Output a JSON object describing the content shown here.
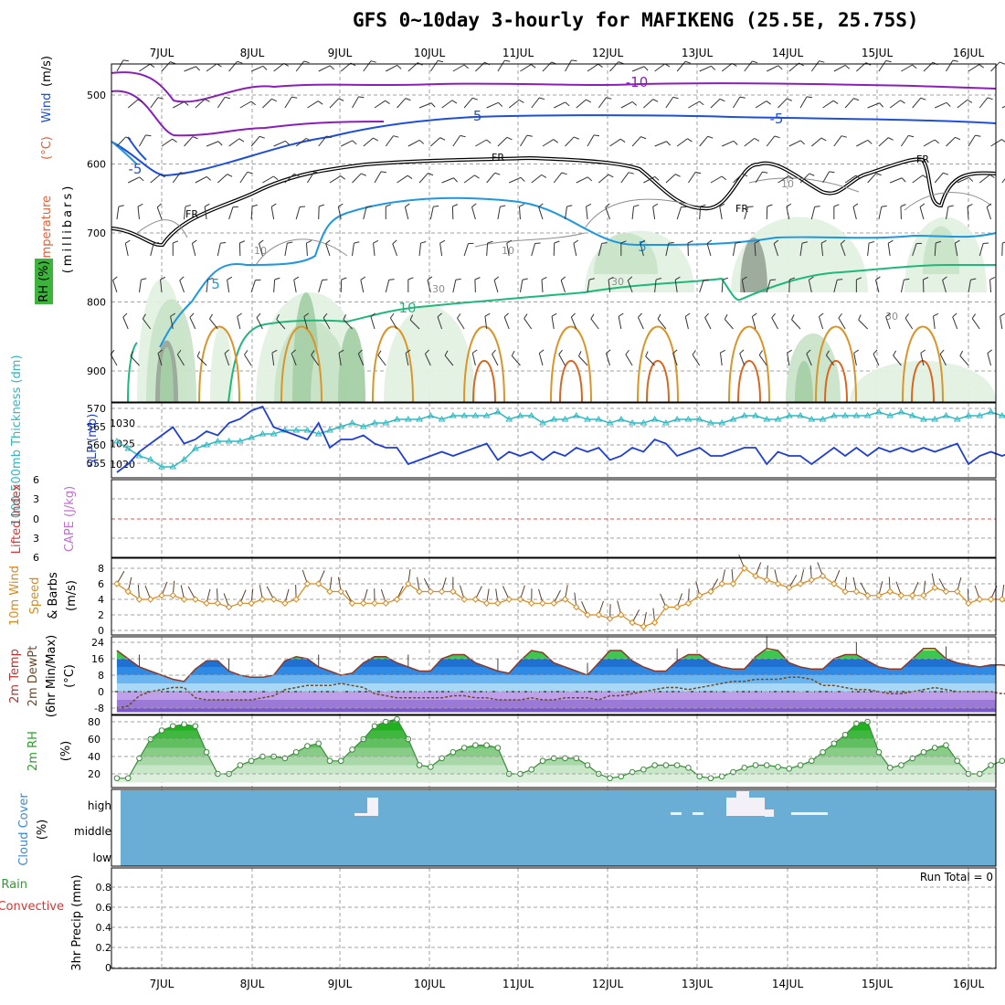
{
  "title": "GFS 0~10day 3-hourly for MAFIKENG (25.5E, 25.75S)",
  "dates": [
    "7JUL",
    "8JUL",
    "9JUL",
    "10JUL",
    "11JUL",
    "12JUL",
    "13JUL",
    "14JUL",
    "15JUL",
    "16JUL"
  ],
  "run_total": "Run Total = 0",
  "colors": {
    "frame": "#000000",
    "grid": "#a0a0a0",
    "temp_m10": "#8a1fb8",
    "temp_m5": "#1f4fd6",
    "temp_p5": "#1f97e0",
    "temp_p10": "#1fb87a",
    "temp_warm": "#d9952a",
    "fr": "#000000",
    "slp": "#1f3fd0",
    "thickness": "#2fb8c0",
    "wind10": "#d98a1f",
    "cloud": "#6aaed6"
  },
  "chart_data": [
    {
      "id": "upper-air",
      "type": "contour",
      "ylabel": "(millibars)",
      "ylabel_left": [
        "Temperature",
        "(°C)",
        "Wind",
        "(m/s)"
      ],
      "rh_label": "RH (%)",
      "y_ticks": [
        "500",
        "600",
        "700",
        "800",
        "900"
      ],
      "contour_labels": [
        "-10",
        "-5",
        "-5",
        "-5",
        "FR",
        "FR",
        "FR",
        "FR",
        "5",
        "5",
        "10",
        "10",
        "10",
        "10",
        "30",
        "30",
        "30"
      ]
    },
    {
      "id": "slp-thickness",
      "type": "line",
      "ylabel_left": "1000-500mb Thickness (dm)",
      "ylabel_right": "SLP (mb)",
      "left_ticks": [
        "570",
        "565",
        "560",
        "555"
      ],
      "right_ticks": [
        "1030",
        "1025",
        "1020"
      ],
      "series": [
        {
          "name": "SLP",
          "values": [
            1018,
            1020,
            1023,
            1025,
            1027,
            1029,
            1025,
            1026,
            1028,
            1027,
            1030,
            1031,
            1033,
            1034,
            1029,
            1028,
            1027,
            1026,
            1030,
            1024,
            1026,
            1026,
            1027,
            1025,
            1024,
            1024,
            1020,
            1021,
            1022,
            1023,
            1022,
            1023,
            1024,
            1025,
            1021,
            1023,
            1022,
            1023,
            1021,
            1023,
            1022,
            1024,
            1023,
            1024,
            1021,
            1022,
            1024,
            1023,
            1026,
            1025,
            1022,
            1023,
            1024,
            1022,
            1022,
            1023,
            1024,
            1024,
            1020,
            1023,
            1022,
            1022,
            1020,
            1022,
            1024,
            1022,
            1024,
            1022,
            1024,
            1023,
            1024,
            1023,
            1024,
            1023,
            1024,
            1025,
            1020,
            1022,
            1023,
            1022,
            1023,
            1024
          ]
        },
        {
          "name": "Thickness",
          "values": [
            561,
            559,
            557,
            556,
            554,
            554,
            556,
            559,
            560,
            561,
            561,
            561,
            562,
            563,
            563,
            564,
            564,
            564,
            563,
            564,
            565,
            566,
            565,
            566,
            566,
            567,
            567,
            567,
            568,
            567,
            568,
            568,
            568,
            568,
            569,
            567,
            568,
            568,
            566,
            567,
            567,
            568,
            567,
            567,
            566,
            567,
            566,
            566,
            567,
            566,
            567,
            567,
            567,
            566,
            566,
            567,
            568,
            568,
            567,
            567,
            568,
            568,
            567,
            567,
            568,
            568,
            568,
            568,
            569,
            568,
            569,
            568,
            567,
            567,
            568,
            567,
            568,
            568,
            569,
            568,
            568,
            568
          ]
        }
      ]
    },
    {
      "id": "cape-li",
      "type": "line",
      "ylabel_left": "Lifted Index",
      "ylabel_right": "CAPE (J/kg)",
      "y_ticks": [
        "6",
        "3",
        "0",
        "3",
        "6"
      ]
    },
    {
      "id": "wind10m",
      "type": "line",
      "ylabel_left": "10m Wind",
      "ylabel_mid": "Speed",
      "ylabel_right": "& Barbs",
      "unit": "(m/s)",
      "y_ticks": [
        "8",
        "6",
        "4",
        "2",
        "0"
      ],
      "ylim": [
        0,
        9
      ],
      "series": [
        {
          "name": "10m Wind Speed",
          "values": [
            6,
            5,
            4,
            4,
            4.5,
            4.5,
            4,
            4,
            3.5,
            3.5,
            3,
            3.5,
            3.5,
            4,
            4,
            3.5,
            4,
            6,
            6,
            5,
            5,
            3.5,
            3.5,
            3.5,
            3.5,
            4,
            6,
            5,
            5,
            5,
            5,
            4,
            4,
            3.5,
            3.5,
            4,
            4,
            3.5,
            3.5,
            3.5,
            4,
            3,
            2,
            2,
            1.5,
            2,
            1,
            0.5,
            1,
            3,
            3,
            3.5,
            4.5,
            5,
            6,
            6,
            8,
            7,
            6.5,
            6,
            5.5,
            6,
            6.5,
            7,
            6,
            5,
            5,
            4.5,
            4.5,
            5,
            4.5,
            4.5,
            4.5,
            5.5,
            5,
            5,
            3.5,
            4,
            4,
            4,
            3,
            5
          ]
        }
      ]
    },
    {
      "id": "temperature-2m",
      "type": "area",
      "ylabel_left": "2m Temp",
      "ylabel_mid": "2m DewPt",
      "ylabel_right": "(6hr Min/Max)",
      "unit": "(°C)",
      "y_ticks": [
        "24",
        "16",
        "8",
        "0",
        "-8"
      ],
      "ylim": [
        -10,
        26
      ],
      "series": [
        {
          "name": "2m Temp",
          "values": [
            20,
            16,
            12,
            10,
            8,
            6,
            5,
            11,
            15,
            15,
            10,
            8,
            7,
            7,
            8,
            15,
            17,
            16,
            12,
            10,
            8,
            9,
            14,
            17,
            17,
            14,
            12,
            10,
            10,
            16,
            18,
            18,
            14,
            12,
            10,
            9,
            15,
            20,
            19,
            14,
            12,
            10,
            8,
            14,
            20,
            20,
            15,
            12,
            10,
            10,
            15,
            18,
            18,
            14,
            12,
            11,
            11,
            17,
            21,
            20,
            14,
            12,
            11,
            11,
            16,
            18,
            18,
            15,
            12,
            11,
            11,
            16,
            21,
            21,
            16,
            14,
            13,
            12,
            13,
            13,
            12,
            12
          ]
        },
        {
          "name": "2m DewPt",
          "values": [
            -8,
            -7,
            -2,
            0,
            1,
            2,
            2,
            -3,
            -4,
            -4,
            -4,
            -4,
            -4,
            -3,
            -2,
            1,
            2,
            3,
            3,
            3,
            4,
            3,
            2,
            -1,
            -2,
            -3,
            -3,
            -3,
            -3,
            -3,
            -2,
            -2,
            -3,
            -3,
            -4,
            -4,
            -4,
            -3,
            -4,
            -4,
            -3,
            -3,
            -3,
            -4,
            -2,
            -2,
            -1,
            0,
            1,
            2,
            2,
            1,
            2,
            3,
            4,
            5,
            5,
            6,
            6,
            6,
            7,
            7,
            6,
            3,
            3,
            2,
            1,
            1,
            0,
            -1,
            -1,
            0,
            1,
            2,
            1,
            0,
            0,
            0,
            0,
            -1,
            -1,
            -1
          ]
        }
      ]
    },
    {
      "id": "rh-2m",
      "type": "area",
      "ylabel_left": "2m RH",
      "unit": "(%)",
      "y_ticks": [
        "80",
        "60",
        "40",
        "20"
      ],
      "ylim": [
        10,
        90
      ],
      "series": [
        {
          "name": "2m RH",
          "values": [
            15,
            15,
            38,
            60,
            70,
            75,
            77,
            75,
            45,
            20,
            20,
            30,
            35,
            40,
            40,
            38,
            45,
            52,
            55,
            35,
            35,
            48,
            60,
            75,
            80,
            83,
            60,
            30,
            28,
            38,
            45,
            50,
            53,
            53,
            50,
            20,
            20,
            25,
            35,
            38,
            38,
            38,
            30,
            20,
            15,
            17,
            22,
            25,
            30,
            30,
            30,
            27,
            17,
            15,
            17,
            22,
            27,
            30,
            30,
            28,
            26,
            30,
            35,
            45,
            55,
            65,
            78,
            80,
            45,
            27,
            30,
            38,
            45,
            50,
            53,
            35,
            20,
            20,
            30,
            35,
            38,
            40
          ]
        }
      ]
    },
    {
      "id": "cloud-cover",
      "type": "bar",
      "ylabel_left": "Cloud Cover",
      "unit": "(%)",
      "y_ticks": [
        "high",
        "middle",
        "low"
      ]
    },
    {
      "id": "precip",
      "type": "bar",
      "ylabel_left": "Total / Rain",
      "ylabel_left2": "Convective",
      "ylabel_right": "3hr Precip (mm)",
      "y_ticks": [
        "0.8",
        "0.6",
        "0.4",
        "0.2",
        "0"
      ],
      "ylim": [
        0,
        0.9
      ],
      "values": []
    }
  ]
}
